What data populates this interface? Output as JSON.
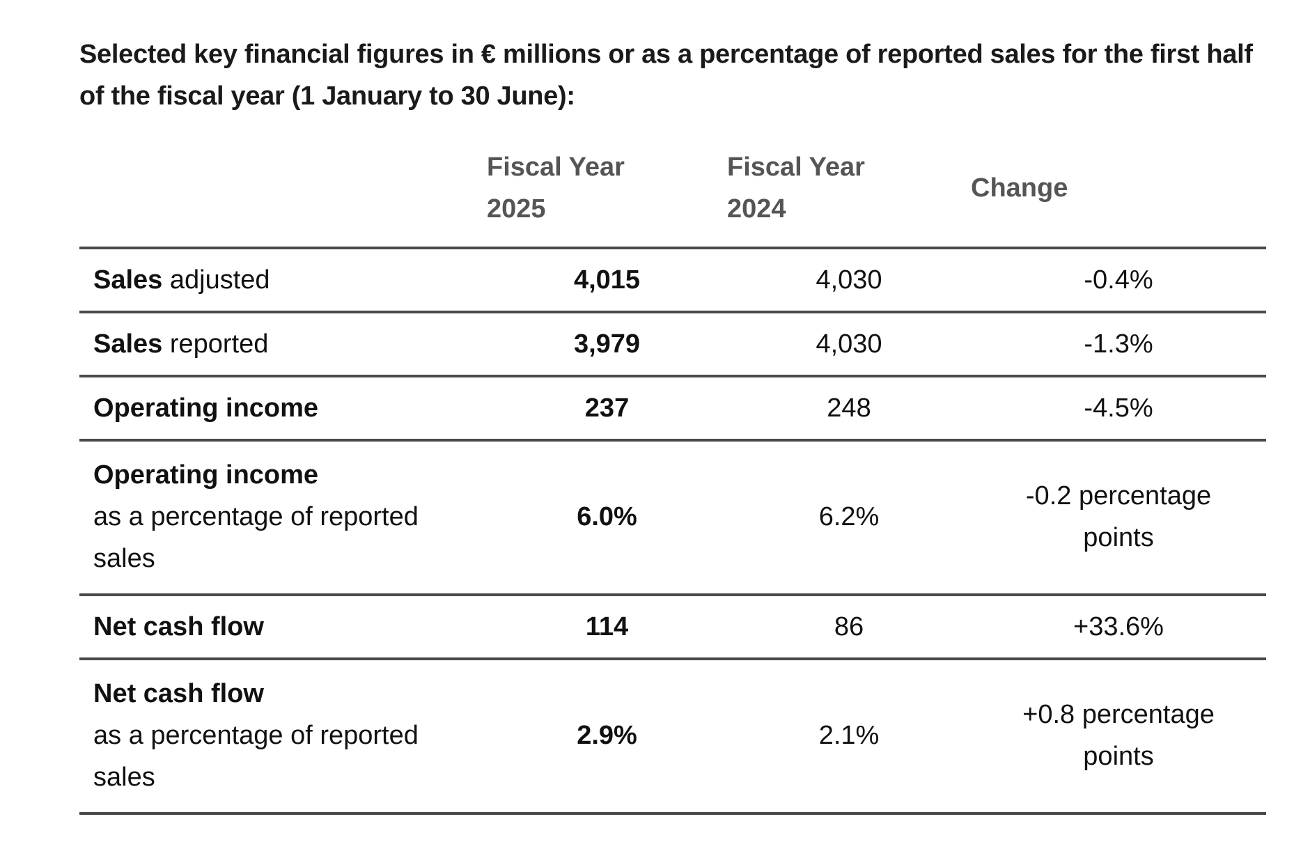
{
  "intro": "Selected key financial figures in € millions or as a percentage of reported sales for the first half of the fiscal year (1 January to 30 June):",
  "headers": {
    "label": "",
    "fy2025_line1": "Fiscal Year",
    "fy2025_line2": "2025",
    "fy2024_line1": "Fiscal Year",
    "fy2024_line2": "2024",
    "change": "Change"
  },
  "rows": [
    {
      "label_bold": "Sales",
      "label_rest": " adjusted",
      "fy2025": "4,015",
      "fy2024": "4,030",
      "change": "-0.4%"
    },
    {
      "label_bold": "Sales",
      "label_rest": " reported",
      "fy2025": "3,979",
      "fy2024": "4,030",
      "change": "-1.3%"
    },
    {
      "label_bold": "Operating income",
      "label_rest": "",
      "fy2025": "237",
      "fy2024": "248",
      "change": "-4.5%"
    },
    {
      "label_bold": "Operating income",
      "label_rest": "as a percentage of reported sales",
      "fy2025": "6.0%",
      "fy2024": "6.2%",
      "change": "-0.2 percentage points"
    },
    {
      "label_bold": "Net cash flow",
      "label_rest": "",
      "fy2025": "114",
      "fy2024": "86",
      "change": "+33.6%"
    },
    {
      "label_bold": "Net cash flow",
      "label_rest": "as a percentage of reported sales",
      "fy2025": "2.9%",
      "fy2024": "2.1%",
      "change": "+0.8 percentage points"
    }
  ]
}
